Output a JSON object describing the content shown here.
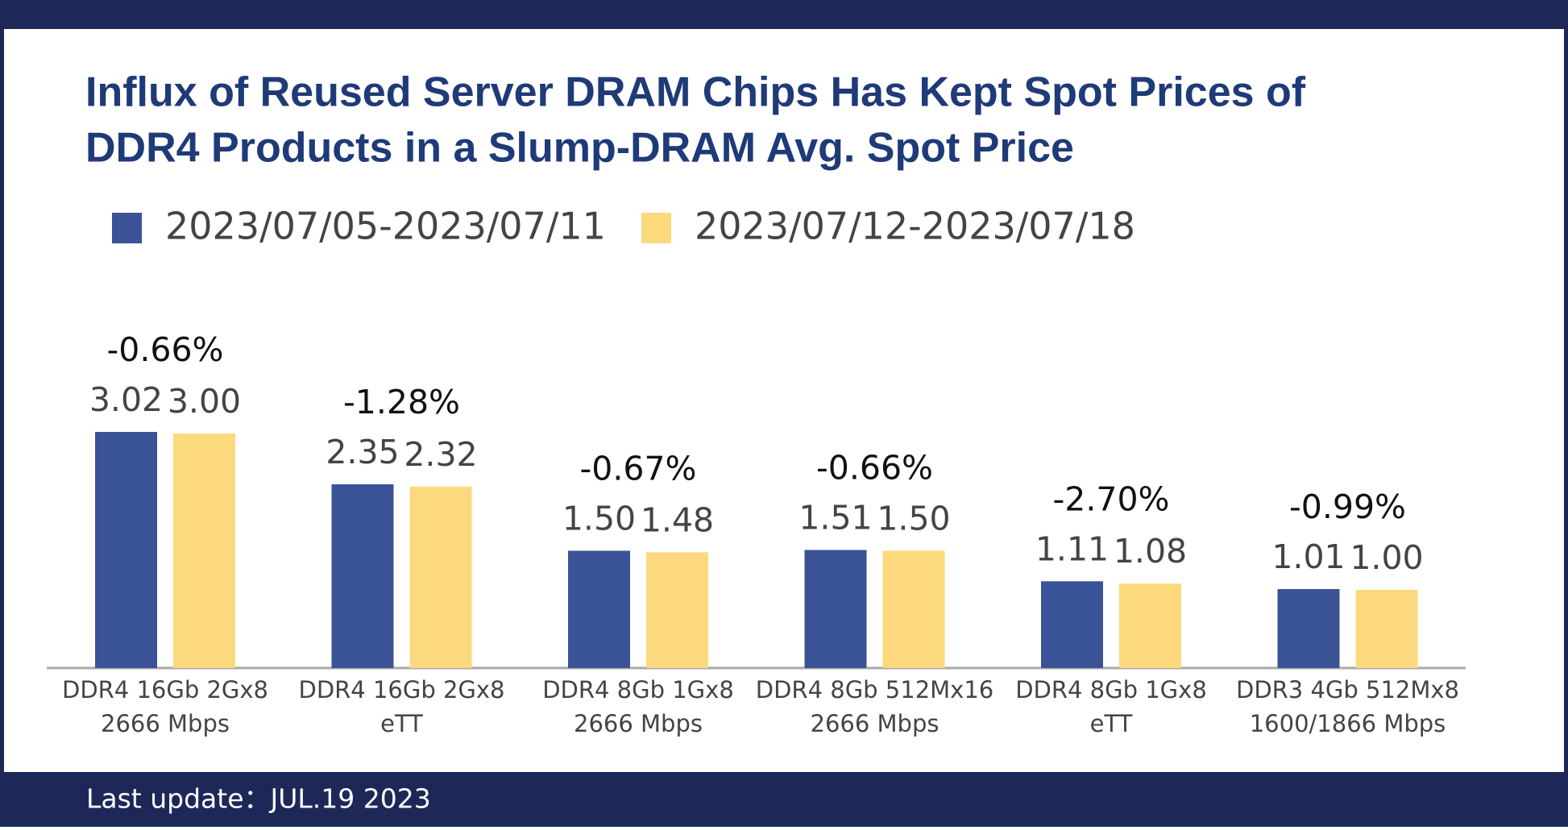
{
  "chart_data": {
    "type": "bar",
    "title": [
      "Influx of Reused Server DRAM Chips Has Kept Spot Prices of",
      "DDR4 Products in a Slump-DRAM Avg. Spot Price"
    ],
    "categories": [
      [
        "DDR4 16Gb 2Gx8",
        "2666 Mbps"
      ],
      [
        "DDR4 16Gb 2Gx8",
        "eTT"
      ],
      [
        "DDR4 8Gb 1Gx8",
        "2666 Mbps"
      ],
      [
        "DDR4 8Gb 512Mx16",
        "2666 Mbps"
      ],
      [
        "DDR4 8Gb 1Gx8",
        "eTT"
      ],
      [
        "DDR3 4Gb 512Mx8",
        "1600/1866 Mbps"
      ]
    ],
    "series": [
      {
        "name": "2023/07/05-2023/07/11",
        "color": "#3a5396",
        "values": [
          3.02,
          2.35,
          1.5,
          1.51,
          1.11,
          1.01
        ],
        "value_labels": [
          "3.02",
          "2.35",
          "1.50",
          "1.51",
          "1.11",
          "1.01"
        ]
      },
      {
        "name": "2023/07/12-2023/07/18",
        "color": "#fcd97c",
        "values": [
          3.0,
          2.32,
          1.48,
          1.5,
          1.08,
          1.0
        ],
        "value_labels": [
          "3.00",
          "2.32",
          "1.48",
          "1.50",
          "1.08",
          "1.00"
        ]
      }
    ],
    "change_labels": [
      "-0.66%",
      "-1.28%",
      "-0.67%",
      "-0.66%",
      "-2.70%",
      "-0.99%"
    ],
    "legend": "top-left"
  },
  "footer": "Last update：JUL.19 2023"
}
